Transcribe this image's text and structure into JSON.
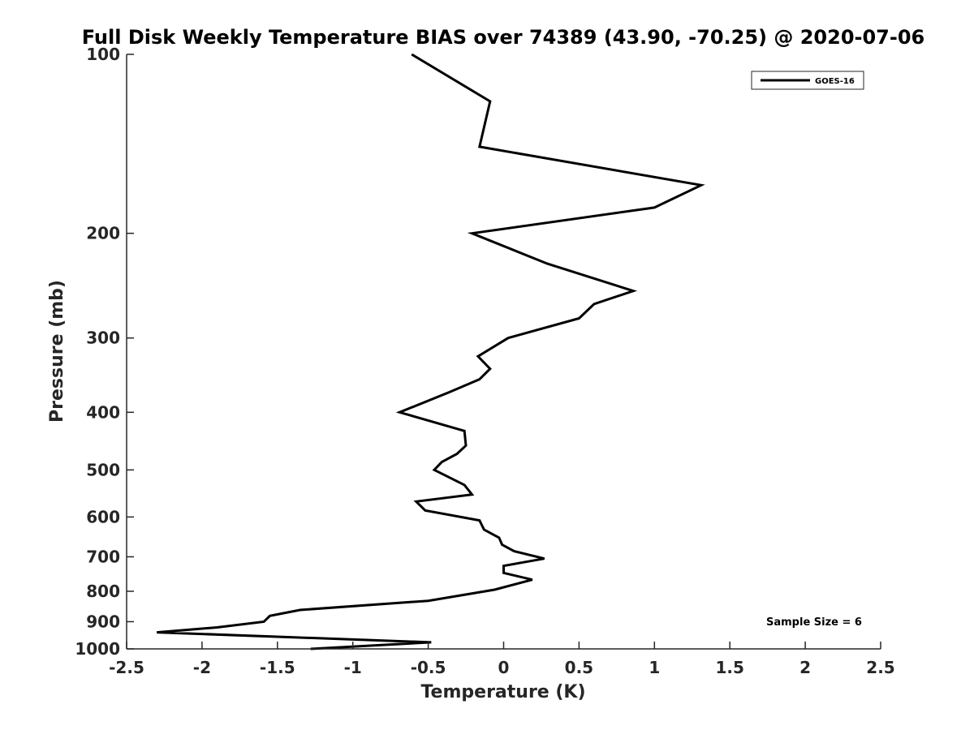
{
  "chart_data": {
    "type": "line",
    "title": "Full Disk Weekly Temperature BIAS over 74389 (43.90, -70.25) @ 2020-07-06",
    "xlabel": "Temperature (K)",
    "ylabel": "Pressure (mb)",
    "xlim": [
      -2.5,
      2.5
    ],
    "ylim": [
      100,
      1000
    ],
    "y_scale": "log",
    "y_reversed": true,
    "x_ticks": [
      "-2.5",
      "-2",
      "-1.5",
      "-1",
      "-0.5",
      "0",
      "0.5",
      "1",
      "1.5",
      "2",
      "2.5"
    ],
    "y_ticks": [
      "100",
      "200",
      "300",
      "400",
      "500",
      "600",
      "700",
      "800",
      "900",
      "1000"
    ],
    "grid": false,
    "legend_position": "top-right",
    "line_color": "#000000",
    "annotation": "Sample Size = 6",
    "series": [
      {
        "name": "GOES-16",
        "x": [
          -0.61,
          -0.09,
          -0.16,
          1.31,
          1.0,
          -0.21,
          0.29,
          0.86,
          0.6,
          0.5,
          0.03,
          -0.17,
          -0.09,
          -0.16,
          -0.36,
          -0.69,
          -0.26,
          -0.25,
          -0.31,
          -0.41,
          -0.46,
          -0.26,
          -0.21,
          -0.58,
          -0.52,
          -0.16,
          -0.13,
          -0.03,
          -0.01,
          0.07,
          0.27,
          0.0,
          0.0,
          0.19,
          -0.06,
          -0.5,
          -1.35,
          -1.55,
          -1.59,
          -1.9,
          -2.3,
          -0.48,
          -1.28
        ],
        "y": [
          100,
          120,
          143,
          166,
          181,
          200,
          225,
          250,
          263,
          278,
          300,
          322,
          338,
          352,
          370,
          400,
          430,
          455,
          470,
          485,
          500,
          530,
          550,
          565,
          585,
          608,
          630,
          650,
          668,
          685,
          705,
          725,
          745,
          765,
          795,
          830,
          860,
          880,
          900,
          920,
          938,
          975,
          1000
        ]
      }
    ]
  }
}
